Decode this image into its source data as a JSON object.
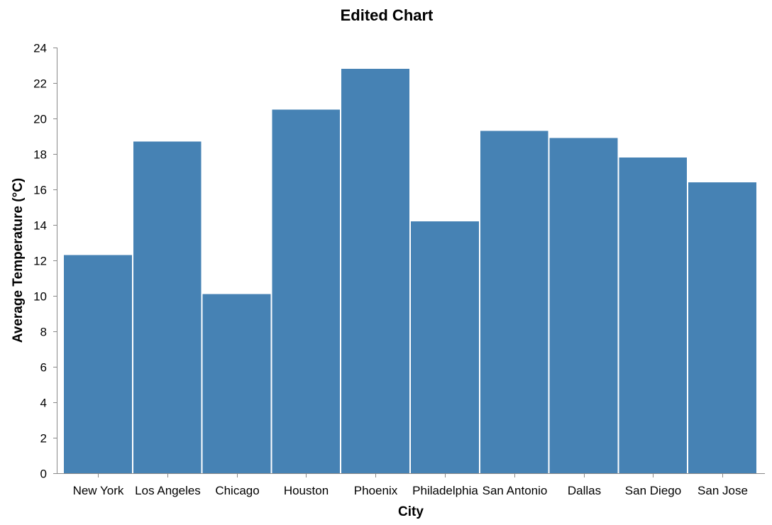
{
  "title": "Edited Chart",
  "chart_data": {
    "type": "bar",
    "title": "Edited Chart",
    "xlabel": "City",
    "ylabel": "Average Temperature (°C)",
    "categories": [
      "New York",
      "Los Angeles",
      "Chicago",
      "Houston",
      "Phoenix",
      "Philadelphia",
      "San Antonio",
      "Dallas",
      "San Diego",
      "San Jose"
    ],
    "values": [
      12.3,
      18.7,
      10.1,
      20.5,
      22.8,
      14.2,
      19.3,
      18.9,
      17.8,
      16.4
    ],
    "ylim": [
      0,
      24
    ],
    "yticks": [
      0,
      2,
      4,
      6,
      8,
      10,
      12,
      14,
      16,
      18,
      20,
      22,
      24
    ],
    "bar_color": "#4682b4",
    "grid": false,
    "legend": "none"
  }
}
